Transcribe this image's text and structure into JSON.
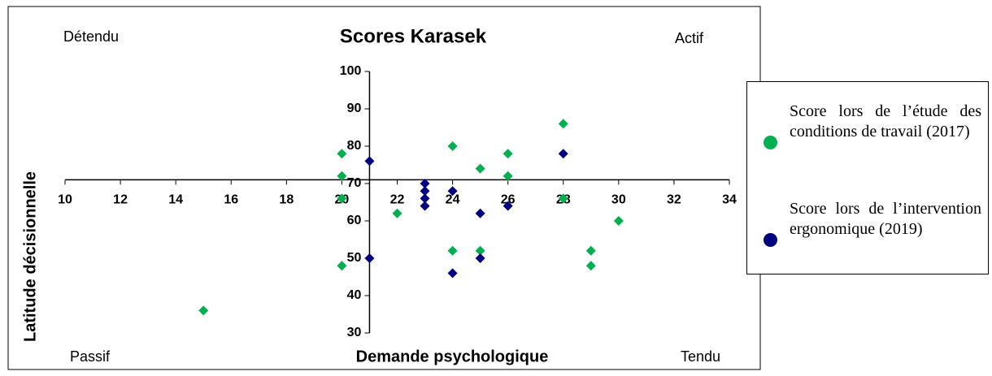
{
  "chart_data": {
    "type": "scatter",
    "title": "Scores Karasek",
    "x_label": "Demande psychologique",
    "y_label": "Latitude décisionnelle",
    "annotations": [
      "Détendu",
      "Actif",
      "Passif",
      "Tendu"
    ],
    "xlim": [
      10,
      34
    ],
    "xticks": [
      10,
      12,
      14,
      16,
      18,
      20,
      22,
      24,
      26,
      28,
      30,
      32,
      34
    ],
    "ylim": [
      30,
      100
    ],
    "yticks": [
      30,
      40,
      50,
      60,
      70,
      80,
      90,
      100
    ],
    "x_axis_at_y": 71,
    "y_axis_at_x": 21,
    "legend": "right",
    "series": [
      {
        "name": "Score lors de l’étude des conditions de travail (2017)",
        "color": "#00b050",
        "x": [
          15,
          20,
          20,
          20,
          20,
          22,
          24,
          24,
          25,
          25,
          26,
          26,
          28,
          28,
          29,
          29,
          30
        ],
        "values": [
          36,
          78,
          72,
          66,
          48,
          62,
          80,
          52,
          74,
          52,
          78,
          72,
          86,
          66,
          52,
          48,
          60
        ]
      },
      {
        "name": "Score lors de l’intervention ergonomique (2019)",
        "color": "#000080",
        "x": [
          21,
          21,
          23,
          23,
          23,
          23,
          24,
          24,
          25,
          25,
          26,
          28
        ],
        "values": [
          76,
          50,
          70,
          68,
          66,
          64,
          68,
          46,
          62,
          50,
          64,
          78
        ]
      }
    ]
  }
}
